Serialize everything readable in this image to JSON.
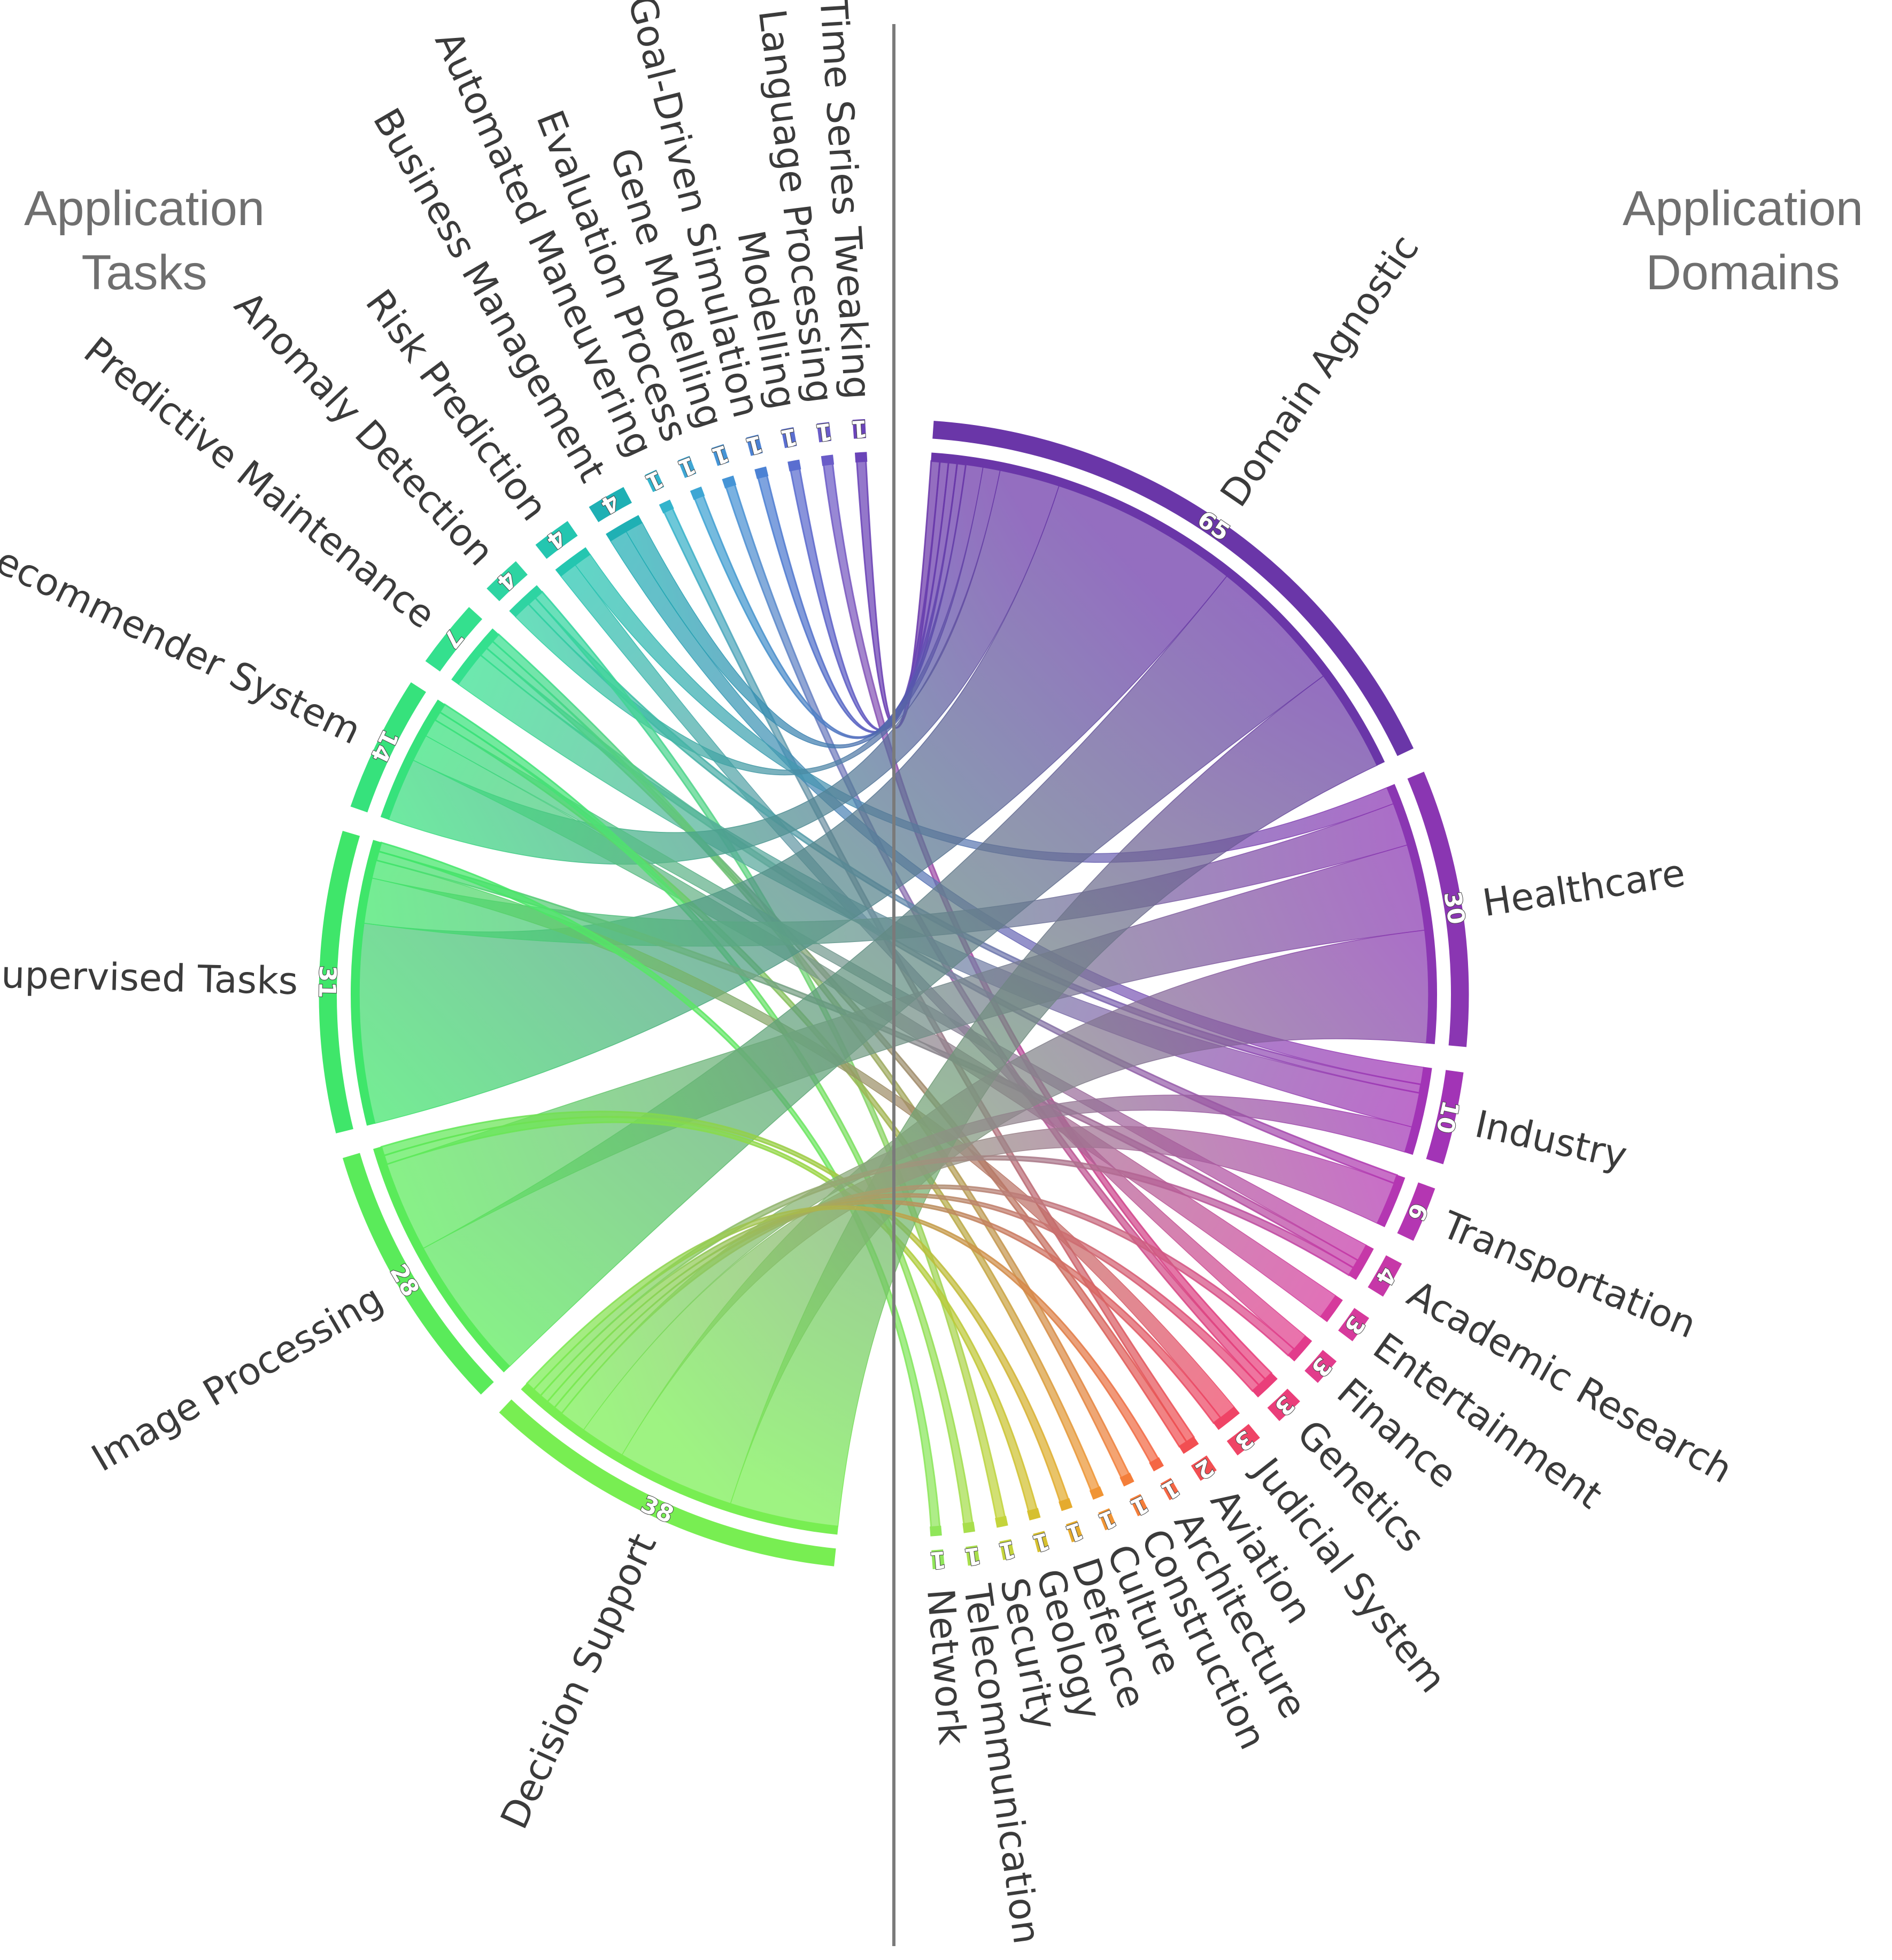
{
  "titles": {
    "left": "Application\nTasks",
    "right": "Application\nDomains"
  },
  "chart_data": {
    "type": "chord",
    "left_group": "Application Tasks",
    "right_group": "Application Domains",
    "tasks": [
      {
        "label": "Time Series Tweaking",
        "value": 1,
        "color": "#6a44b8"
      },
      {
        "label": "Natural Language Processing",
        "value": 1,
        "color": "#6a5cc8"
      },
      {
        "label": "Modelling",
        "value": 1,
        "color": "#5a6ed0"
      },
      {
        "label": "Goal-Driven Simulation",
        "value": 1,
        "color": "#4c82d4"
      },
      {
        "label": "Gene Modelling",
        "value": 1,
        "color": "#4594d6"
      },
      {
        "label": "Evaluation Process",
        "value": 1,
        "color": "#3ea6d4"
      },
      {
        "label": "Automated Maneuvering",
        "value": 1,
        "color": "#33b4cc"
      },
      {
        "label": "Business Management",
        "value": 4,
        "color": "#1fb0b4"
      },
      {
        "label": "Risk Prediction",
        "value": 4,
        "color": "#24c6b0"
      },
      {
        "label": "Anomaly Detection",
        "value": 4,
        "color": "#2ed4a2"
      },
      {
        "label": "Predictive Maintenance",
        "value": 7,
        "color": "#34e08e"
      },
      {
        "label": "Recommender System",
        "value": 14,
        "color": "#36e27c"
      },
      {
        "label": "Supervised Tasks",
        "value": 31,
        "color": "#3fe66a"
      },
      {
        "label": "Image Processing",
        "value": 28,
        "color": "#5aeb5a"
      },
      {
        "label": "Decision Support",
        "value": 38,
        "color": "#78ee52"
      }
    ],
    "domains": [
      {
        "label": "Domain Agnostic",
        "value": 65,
        "color": "#6a36a8"
      },
      {
        "label": "Healthcare",
        "value": 30,
        "color": "#8a36b2"
      },
      {
        "label": "Industry",
        "value": 10,
        "color": "#a234b6"
      },
      {
        "label": "Transportation",
        "value": 6,
        "color": "#b436b2"
      },
      {
        "label": "Academic Research",
        "value": 4,
        "color": "#c638a8"
      },
      {
        "label": "Entertainment",
        "value": 3,
        "color": "#d63a9c"
      },
      {
        "label": "Finance",
        "value": 3,
        "color": "#e23c8c"
      },
      {
        "label": "Genetics",
        "value": 3,
        "color": "#ea3e7a"
      },
      {
        "label": "Judicial System",
        "value": 3,
        "color": "#ef4466"
      },
      {
        "label": "Aviation",
        "value": 2,
        "color": "#f24e52"
      },
      {
        "label": "Architecture",
        "value": 1,
        "color": "#f56644"
      },
      {
        "label": "Construction",
        "value": 1,
        "color": "#f47e3a"
      },
      {
        "label": "Culture",
        "value": 1,
        "color": "#f09434"
      },
      {
        "label": "Defence",
        "value": 1,
        "color": "#e5ab2e"
      },
      {
        "label": "Geology",
        "value": 1,
        "color": "#d6c030"
      },
      {
        "label": "Security",
        "value": 1,
        "color": "#c4d43c"
      },
      {
        "label": "Telecommunication",
        "value": 1,
        "color": "#a8de4c"
      },
      {
        "label": "Network",
        "value": 1,
        "color": "#90e65a"
      }
    ],
    "links": [
      {
        "task": "Time Series Tweaking",
        "domain": "Domain Agnostic",
        "value": 1
      },
      {
        "task": "Natural Language Processing",
        "domain": "Genetics",
        "value": 1
      },
      {
        "task": "Modelling",
        "domain": "Domain Agnostic",
        "value": 1
      },
      {
        "task": "Goal-Driven Simulation",
        "domain": "Domain Agnostic",
        "value": 1
      },
      {
        "task": "Gene Modelling",
        "domain": "Genetics",
        "value": 1
      },
      {
        "task": "Evaluation Process",
        "domain": "Domain Agnostic",
        "value": 1
      },
      {
        "task": "Automated Maneuvering",
        "domain": "Aviation",
        "value": 1
      },
      {
        "task": "Business Management",
        "domain": "Industry",
        "value": 2
      },
      {
        "task": "Business Management",
        "domain": "Domain Agnostic",
        "value": 2
      },
      {
        "task": "Risk Prediction",
        "domain": "Finance",
        "value": 2
      },
      {
        "task": "Risk Prediction",
        "domain": "Healthcare",
        "value": 2
      },
      {
        "task": "Anomaly Detection",
        "domain": "Domain Agnostic",
        "value": 2
      },
      {
        "task": "Anomaly Detection",
        "domain": "Industry",
        "value": 1
      },
      {
        "task": "Anomaly Detection",
        "domain": "Security",
        "value": 1
      },
      {
        "task": "Predictive Maintenance",
        "domain": "Industry",
        "value": 4
      },
      {
        "task": "Predictive Maintenance",
        "domain": "Transportation",
        "value": 1
      },
      {
        "task": "Predictive Maintenance",
        "domain": "Aviation",
        "value": 1
      },
      {
        "task": "Predictive Maintenance",
        "domain": "Construction",
        "value": 1
      },
      {
        "task": "Recommender System",
        "domain": "Domain Agnostic",
        "value": 7
      },
      {
        "task": "Recommender System",
        "domain": "Entertainment",
        "value": 3
      },
      {
        "task": "Recommender System",
        "domain": "Academic Research",
        "value": 2
      },
      {
        "task": "Recommender System",
        "domain": "Culture",
        "value": 1
      },
      {
        "task": "Recommender System",
        "domain": "Telecommunication",
        "value": 1
      },
      {
        "task": "Supervised Tasks",
        "domain": "Domain Agnostic",
        "value": 22
      },
      {
        "task": "Supervised Tasks",
        "domain": "Healthcare",
        "value": 5
      },
      {
        "task": "Supervised Tasks",
        "domain": "Judicial System",
        "value": 2
      },
      {
        "task": "Supervised Tasks",
        "domain": "Academic Research",
        "value": 1
      },
      {
        "task": "Supervised Tasks",
        "domain": "Network",
        "value": 1
      },
      {
        "task": "Image Processing",
        "domain": "Domain Agnostic",
        "value": 16
      },
      {
        "task": "Image Processing",
        "domain": "Healthcare",
        "value": 10
      },
      {
        "task": "Image Processing",
        "domain": "Geology",
        "value": 1
      },
      {
        "task": "Image Processing",
        "domain": "Defence",
        "value": 1
      },
      {
        "task": "Decision Support",
        "domain": "Domain Agnostic",
        "value": 12
      },
      {
        "task": "Decision Support",
        "domain": "Healthcare",
        "value": 13
      },
      {
        "task": "Decision Support",
        "domain": "Transportation",
        "value": 5
      },
      {
        "task": "Decision Support",
        "domain": "Industry",
        "value": 3
      },
      {
        "task": "Decision Support",
        "domain": "Finance",
        "value": 1
      },
      {
        "task": "Decision Support",
        "domain": "Genetics",
        "value": 1
      },
      {
        "task": "Decision Support",
        "domain": "Judicial System",
        "value": 1
      },
      {
        "task": "Decision Support",
        "domain": "Academic Research",
        "value": 1
      },
      {
        "task": "Decision Support",
        "domain": "Architecture",
        "value": 1
      }
    ]
  }
}
